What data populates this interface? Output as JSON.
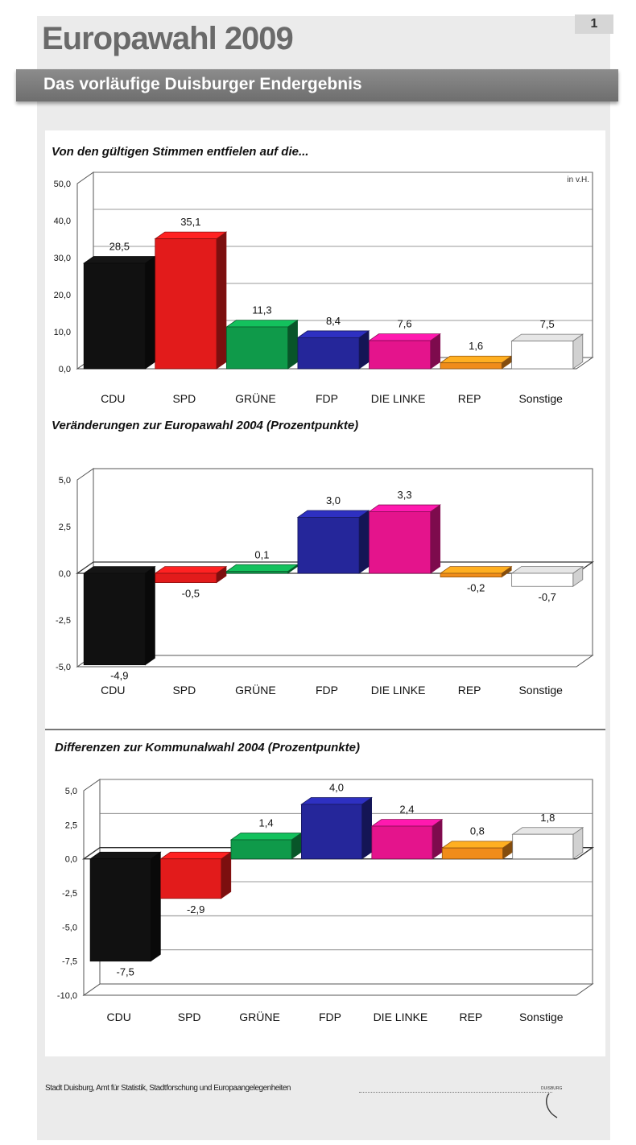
{
  "page_number": "1",
  "title": "Europawahl 2009",
  "subtitle": "Das vorläufige Duisburger Endergebnis",
  "footer": "Stadt Duisburg, Amt für Statistik, Stadtforschung und Europaangelegenheiten",
  "logo_text": "DUISBURG",
  "colors": {
    "CDU": "#111111",
    "SPD": "#e21b1b",
    "GRÜNE": "#0f9a4a",
    "FDP": "#25269a",
    "DIE LINKE": "#e4148c",
    "REP": "#f08c1a",
    "Sonstige": "#ffffff"
  },
  "chart_data": [
    {
      "type": "bar",
      "title": "Von den gültigen Stimmen entfielen auf die...",
      "unit_label": "in v.H.",
      "categories": [
        "CDU",
        "SPD",
        "GRÜNE",
        "FDP",
        "DIE LINKE",
        "REP",
        "Sonstige"
      ],
      "values": [
        28.5,
        35.1,
        11.3,
        8.4,
        7.6,
        1.6,
        7.5
      ],
      "value_labels": [
        "28,5",
        "35,1",
        "11,3",
        "8,4",
        "7,6",
        "1,6",
        "7,5"
      ],
      "ylim": [
        0,
        50
      ],
      "yticks": [
        "0,0",
        "10,0",
        "20,0",
        "30,0",
        "40,0",
        "50,0"
      ],
      "grid": true
    },
    {
      "type": "bar",
      "title": "Veränderungen zur Europawahl 2004 (Prozentpunkte)",
      "categories": [
        "CDU",
        "SPD",
        "GRÜNE",
        "FDP",
        "DIE LINKE",
        "REP",
        "Sonstige"
      ],
      "values": [
        -4.9,
        -0.5,
        0.1,
        3.0,
        3.3,
        -0.2,
        -0.7
      ],
      "value_labels": [
        "-4,9",
        "-0,5",
        "0,1",
        "3,0",
        "3,3",
        "-0,2",
        "-0,7"
      ],
      "ylim": [
        -5,
        5
      ],
      "yticks": [
        "-5,0",
        "-2,5",
        "0,0",
        "2,5",
        "5,0"
      ],
      "grid": false
    },
    {
      "type": "bar",
      "title": "Differenzen zur Kommunalwahl 2004 (Prozentpunkte)",
      "categories": [
        "CDU",
        "SPD",
        "GRÜNE",
        "FDP",
        "DIE LINKE",
        "REP",
        "Sonstige"
      ],
      "values": [
        -7.5,
        -2.9,
        1.4,
        4.0,
        2.4,
        0.8,
        1.8
      ],
      "value_labels": [
        "-7,5",
        "-2,9",
        "1,4",
        "4,0",
        "2,4",
        "0,8",
        "1,8"
      ],
      "ylim": [
        -10,
        5
      ],
      "yticks": [
        "-10,0",
        "-7,5",
        "-5,0",
        "-2,5",
        "0,0",
        "2,5",
        "5,0"
      ],
      "grid": true
    }
  ]
}
